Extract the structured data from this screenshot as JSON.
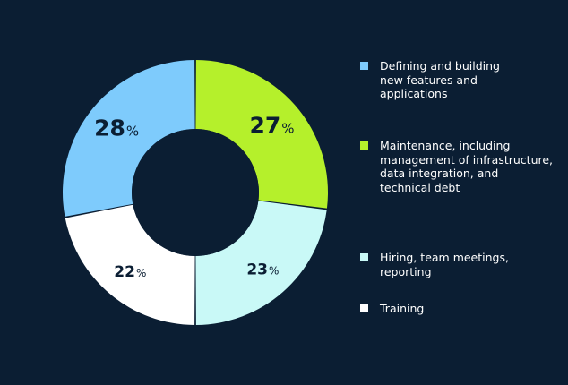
{
  "chart_data": {
    "type": "pie",
    "donut": true,
    "categories": [
      "Maintenance, including\nmanagement of infrastructure,\ndata integration, and\ntechnical debt",
      "Hiring, team meetings,\nreporting",
      "Training",
      "Defining and building\nnew features and\napplications"
    ],
    "values": [
      27,
      23,
      22,
      28
    ],
    "colors": [
      "#b5f02b",
      "#c9f9f7",
      "#ffffff",
      "#7ecbfc"
    ],
    "data_labels": [
      "27",
      "23",
      "22",
      "28"
    ],
    "unit": "%",
    "legend_position": "right",
    "legend_order": [
      3,
      0,
      1,
      2
    ]
  }
}
